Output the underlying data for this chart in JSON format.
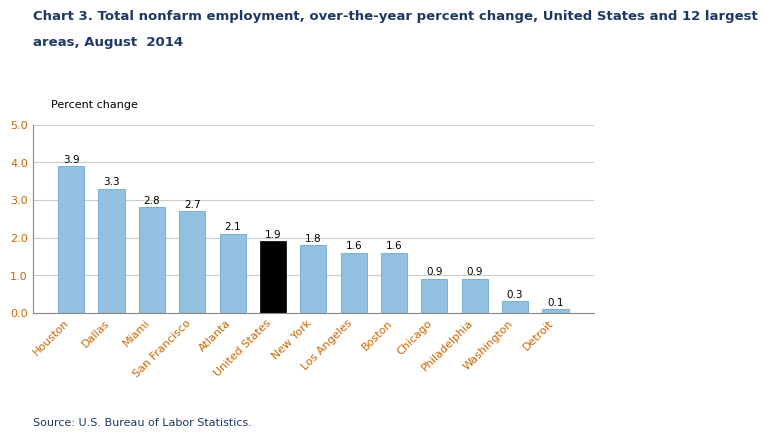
{
  "categories": [
    "Houston",
    "Dallas",
    "Miami",
    "San Francisco",
    "Atlanta",
    "United States",
    "New York",
    "Los Angeles",
    "Boston",
    "Chicago",
    "Philadelphia",
    "Washington",
    "Detroit"
  ],
  "values": [
    3.9,
    3.3,
    2.8,
    2.7,
    2.1,
    1.9,
    1.8,
    1.6,
    1.6,
    0.9,
    0.9,
    0.3,
    0.1
  ],
  "bar_colors": [
    "#92c0e0",
    "#92c0e0",
    "#92c0e0",
    "#92c0e0",
    "#92c0e0",
    "#000000",
    "#92c0e0",
    "#92c0e0",
    "#92c0e0",
    "#92c0e0",
    "#92c0e0",
    "#92c0e0",
    "#92c0e0"
  ],
  "bar_edge_color": "#5a9dc8",
  "title_line1": "Chart 3. Total nonfarm employment, over-the-year percent change, United States and 12 largest",
  "title_line2": "areas, August  2014",
  "ylabel": "Percent change",
  "ylim": [
    0,
    5.0
  ],
  "yticks": [
    0.0,
    1.0,
    2.0,
    3.0,
    4.0,
    5.0
  ],
  "source": "Source: U.S. Bureau of Labor Statistics.",
  "title_fontsize": 9.5,
  "label_fontsize": 8,
  "tick_fontsize": 8,
  "source_fontsize": 8,
  "bar_label_fontsize": 7.5,
  "grid_color": "#cccccc",
  "spine_color": "#888888",
  "title_color": "#1f3864",
  "source_color": "#1f3864",
  "tick_label_color": "#cc6600"
}
